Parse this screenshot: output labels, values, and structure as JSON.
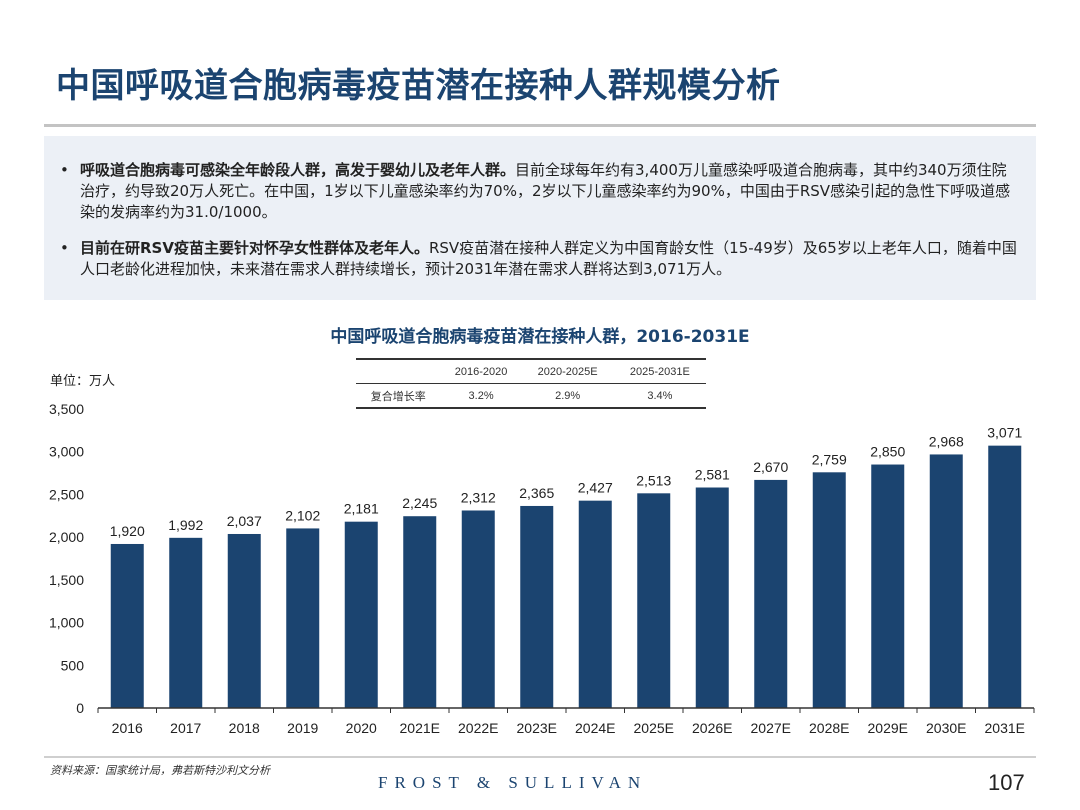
{
  "page": {
    "title": "中国呼吸道合胞病毒疫苗潜在接种人群规模分析",
    "bullets": [
      {
        "bold": "呼吸道合胞病毒可感染全年龄段人群，高发于婴幼儿及老年人群。",
        "text": "目前全球每年约有3,400万儿童感染呼吸道合胞病毒，其中约340万须住院治疗，约导致20万人死亡。在中国，1岁以下儿童感染率约为70%，2岁以下儿童感染率约为90%，中国由于RSV感染引起的急性下呼吸道感染的发病率约为31.0/1000。"
      },
      {
        "bold": "目前在研RSV疫苗主要针对怀孕女性群体及老年人。",
        "text": "RSV疫苗潜在接种人群定义为中国育龄女性（15-49岁）及65岁以上老年人口，随着中国人口老龄化进程加快，未来潜在需求人群持续增长，预计2031年潜在需求人群将达到3,071万人。"
      }
    ],
    "bullet_symbol": "•",
    "source": "资料来源：国家统计局，弗若斯特沙利文分析",
    "brand": "FROST & SULLIVAN",
    "page_number": "107"
  },
  "cagr_table": {
    "headers": [
      "",
      "2016-2020",
      "2020-2025E",
      "2025-2031E"
    ],
    "row_label": "复合增长率",
    "values": [
      "3.2%",
      "2.9%",
      "3.4%"
    ]
  },
  "colors": {
    "bar": "#1b4470",
    "title": "#1b4470",
    "panel": "#ecf0f6"
  },
  "chart_data": {
    "type": "bar",
    "title": "中国呼吸道合胞病毒疫苗潜在接种人群，2016-2031E",
    "unit_label": "单位：万人",
    "xlabel": "",
    "ylabel": "",
    "categories": [
      "2016",
      "2017",
      "2018",
      "2019",
      "2020",
      "2021E",
      "2022E",
      "2023E",
      "2024E",
      "2025E",
      "2026E",
      "2027E",
      "2028E",
      "2029E",
      "2030E",
      "2031E"
    ],
    "values": [
      1920,
      1992,
      2037,
      2102,
      2181,
      2245,
      2312,
      2365,
      2427,
      2513,
      2581,
      2670,
      2759,
      2850,
      2968,
      3071
    ],
    "value_labels": [
      "1,920",
      "1,992",
      "2,037",
      "2,102",
      "2,181",
      "2,245",
      "2,312",
      "2,365",
      "2,427",
      "2,513",
      "2,581",
      "2,670",
      "2,759",
      "2,850",
      "2,968",
      "3,071"
    ],
    "ylim": [
      0,
      3500
    ],
    "yticks": [
      0,
      500,
      1000,
      1500,
      2000,
      2500,
      3000,
      3500
    ],
    "ytick_labels": [
      "0",
      "500",
      "1,000",
      "1,500",
      "2,000",
      "2,500",
      "3,000",
      "3,500"
    ],
    "grid": false,
    "legend": "none"
  }
}
